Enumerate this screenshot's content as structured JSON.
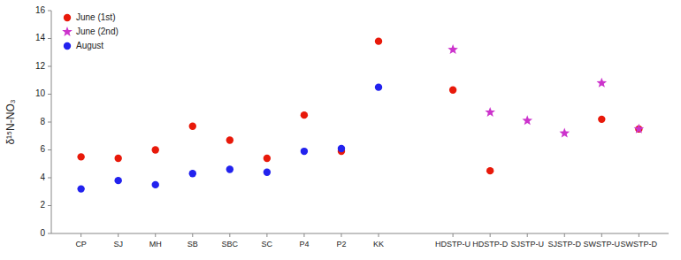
{
  "chart_data": {
    "type": "scatter",
    "y_label": "δ¹⁵N-NO₃",
    "categories": [
      "CP",
      "SJ",
      "MH",
      "SB",
      "SBC",
      "SC",
      "P4",
      "P2",
      "KK",
      null,
      "HDSTP-U",
      "HDSTP-D",
      "SJSTP-U",
      "SJSTP-D",
      "SWSTP-U",
      "SWSTP-D"
    ],
    "series": [
      {
        "name": "June (1st)",
        "color": "#e8190a",
        "marker": "circle",
        "values": [
          5.5,
          5.4,
          6.0,
          7.7,
          6.7,
          5.4,
          8.5,
          5.9,
          13.8,
          null,
          10.3,
          4.5,
          null,
          null,
          8.2,
          7.5
        ]
      },
      {
        "name": "June (2nd)",
        "color": "#cc33cc",
        "marker": "star",
        "values": [
          null,
          null,
          null,
          null,
          null,
          null,
          null,
          null,
          null,
          null,
          13.2,
          8.7,
          8.1,
          7.2,
          10.8,
          7.5
        ]
      },
      {
        "name": "August",
        "color": "#2222ee",
        "marker": "circle",
        "values": [
          3.2,
          3.8,
          3.5,
          4.3,
          4.6,
          4.4,
          5.9,
          6.1,
          10.5,
          null,
          null,
          null,
          null,
          null,
          null,
          null
        ]
      }
    ],
    "ylim": [
      0,
      16
    ],
    "yticks": [
      0,
      2,
      4,
      6,
      8,
      10,
      12,
      14,
      16
    ],
    "grid": false,
    "legend": "upper left"
  }
}
